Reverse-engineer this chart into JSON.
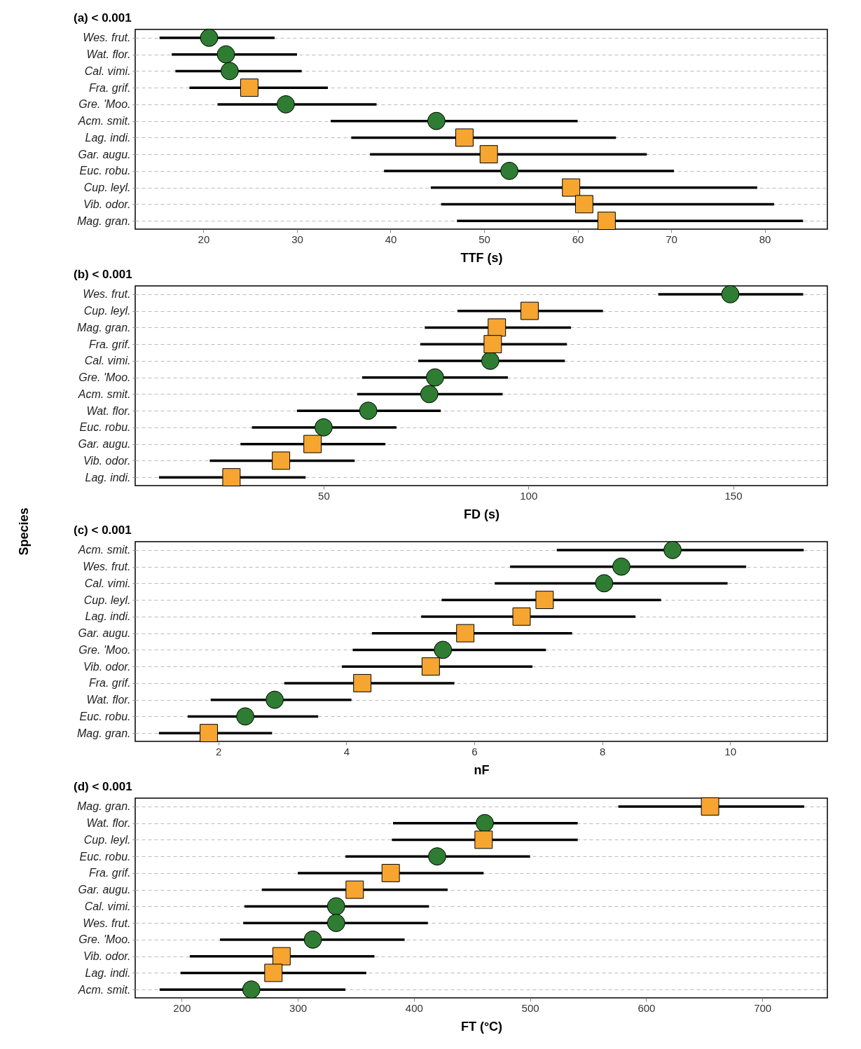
{
  "chart_data": [
    {
      "type": "scatter",
      "orientation": "horizontal",
      "title": "(a) < 0.001",
      "xlabel": "TTF (s)",
      "grid": "y",
      "xlim": [
        12.7,
        86.7
      ],
      "xticks": [
        20,
        30,
        40,
        50,
        60,
        70,
        80
      ],
      "categories": [
        "Wes. frut.",
        "Wat. flor.",
        "Cal. vimi.",
        "Fra. grif.",
        "Gre. 'Moo.",
        "Acm. smit.",
        "Lag. indi.",
        "Gar. augu.",
        "Euc. robu.",
        "Cup. leyl.",
        "Vib. odor.",
        "Mag. gran."
      ],
      "series": [
        {
          "color": "#2e7d32",
          "marker": "circle",
          "values": [
            20.6,
            22.4,
            22.8,
            null,
            28.8,
            44.9,
            null,
            null,
            52.7,
            null,
            null,
            null
          ],
          "errors": [
            [
              15.3,
              27.6
            ],
            [
              16.6,
              30.0
            ],
            [
              17.0,
              30.5
            ],
            null,
            [
              21.5,
              38.5
            ],
            [
              33.6,
              60.0
            ],
            null,
            null,
            [
              39.3,
              70.3
            ],
            null,
            null,
            null
          ]
        },
        {
          "color": "#f7a531",
          "marker": "square",
          "values": [
            null,
            null,
            null,
            24.9,
            null,
            null,
            47.9,
            50.5,
            null,
            59.3,
            60.7,
            63.1
          ],
          "errors": [
            null,
            null,
            null,
            [
              18.5,
              33.3
            ],
            null,
            null,
            [
              35.8,
              64.1
            ],
            [
              37.8,
              67.4
            ],
            null,
            [
              44.3,
              79.2
            ],
            [
              45.4,
              81.0
            ],
            [
              47.1,
              84.1
            ]
          ]
        }
      ]
    },
    {
      "type": "scatter",
      "orientation": "horizontal",
      "title": "(b) < 0.001",
      "xlabel": "FD (s)",
      "ylabel": "Species",
      "grid": "y",
      "xlim": [
        4,
        173
      ],
      "xticks": [
        50,
        100,
        150
      ],
      "categories": [
        "Wes. frut.",
        "Cup. leyl.",
        "Mag. gran.",
        "Fra. grif.",
        "Cal. vimi.",
        "Gre. 'Moo.",
        "Acm. smit.",
        "Wat. flor.",
        "Euc. robu.",
        "Gar. augu.",
        "Vib. odor.",
        "Lag. indi."
      ],
      "series": [
        {
          "color": "#2e7d32",
          "marker": "circle",
          "values": [
            149.3,
            null,
            null,
            null,
            90.7,
            77.2,
            75.8,
            60.9,
            50.0,
            null,
            null,
            null
          ],
          "errors": [
            [
              131.7,
              167.1
            ],
            null,
            null,
            null,
            [
              73.1,
              108.9
            ],
            [
              59.4,
              95.0
            ],
            [
              58.2,
              93.7
            ],
            [
              43.5,
              78.6
            ],
            [
              32.5,
              67.8
            ],
            null,
            null,
            null
          ]
        },
        {
          "color": "#f7a531",
          "marker": "square",
          "values": [
            null,
            100.3,
            92.3,
            91.3,
            null,
            null,
            null,
            null,
            null,
            47.3,
            39.6,
            27.5
          ],
          "errors": [
            null,
            [
              82.7,
              118.2
            ],
            [
              74.7,
              110.4
            ],
            [
              73.6,
              109.4
            ],
            null,
            null,
            null,
            null,
            null,
            [
              29.7,
              65.1
            ],
            [
              22.2,
              57.6
            ],
            [
              9.8,
              45.6
            ]
          ]
        }
      ]
    },
    {
      "type": "scatter",
      "orientation": "horizontal",
      "title": "(c) < 0.001",
      "xlabel": "nF",
      "grid": "y",
      "xlim": [
        0.7,
        11.52
      ],
      "xticks": [
        2,
        4,
        6,
        8,
        10
      ],
      "categories": [
        "Acm. smit.",
        "Wes. frut.",
        "Cal. vimi.",
        "Cup. leyl.",
        "Lag. indi.",
        "Gar. augu.",
        "Gre. 'Moo.",
        "Vib. odor.",
        "Fra. grif.",
        "Wat. flor.",
        "Euc. robu.",
        "Mag. gran."
      ],
      "series": [
        {
          "color": "#2e7d32",
          "marker": "circle",
          "values": [
            9.1,
            8.3,
            8.03,
            null,
            null,
            null,
            5.51,
            null,
            null,
            2.88,
            2.42,
            null
          ],
          "errors": [
            [
              7.29,
              11.15
            ],
            [
              6.56,
              10.25
            ],
            [
              6.32,
              9.96
            ],
            null,
            null,
            null,
            [
              4.1,
              7.12
            ],
            null,
            null,
            [
              1.88,
              4.08
            ],
            [
              1.52,
              3.56
            ],
            null
          ]
        },
        {
          "color": "#f7a531",
          "marker": "square",
          "values": [
            null,
            null,
            null,
            7.1,
            6.74,
            5.86,
            null,
            5.32,
            4.25,
            null,
            null,
            1.85
          ],
          "errors": [
            null,
            null,
            null,
            [
              5.49,
              8.92
            ],
            [
              5.17,
              8.52
            ],
            [
              4.4,
              7.53
            ],
            null,
            [
              3.93,
              6.91
            ],
            [
              3.03,
              5.69
            ],
            null,
            null,
            [
              1.07,
              2.84
            ]
          ]
        }
      ]
    },
    {
      "type": "scatter",
      "orientation": "horizontal",
      "title": "(d) < 0.001",
      "xlabel": "FT (°C)",
      "grid": "y",
      "xlim": [
        160,
        756
      ],
      "xticks": [
        200,
        300,
        400,
        500,
        600,
        700
      ],
      "categories": [
        "Mag. gran.",
        "Wat. flor.",
        "Cup. leyl.",
        "Euc. robu.",
        "Fra. grif.",
        "Gar. augu.",
        "Cal. vimi.",
        "Wes. frut.",
        "Gre. 'Moo.",
        "Vib. odor.",
        "Lag. indi.",
        "Acm. smit."
      ],
      "series": [
        {
          "color": "#2e7d32",
          "marker": "circle",
          "values": [
            null,
            461,
            null,
            420,
            null,
            null,
            333,
            333,
            313,
            null,
            null,
            260
          ],
          "errors": [
            null,
            [
              382,
              541
            ],
            null,
            [
              341,
              500
            ],
            null,
            null,
            [
              254,
              413
            ],
            [
              253,
              412
            ],
            [
              233,
              392
            ],
            null,
            null,
            [
              181,
              341
            ]
          ]
        },
        {
          "color": "#f7a531",
          "marker": "square",
          "values": [
            655,
            null,
            460,
            null,
            380,
            349,
            null,
            null,
            null,
            286,
            279,
            null
          ],
          "errors": [
            [
              576,
              736
            ],
            null,
            [
              381,
              541
            ],
            null,
            [
              300,
              460
            ],
            [
              269,
              429
            ],
            null,
            null,
            null,
            [
              207,
              366
            ],
            [
              199,
              359
            ],
            null
          ]
        }
      ]
    }
  ]
}
